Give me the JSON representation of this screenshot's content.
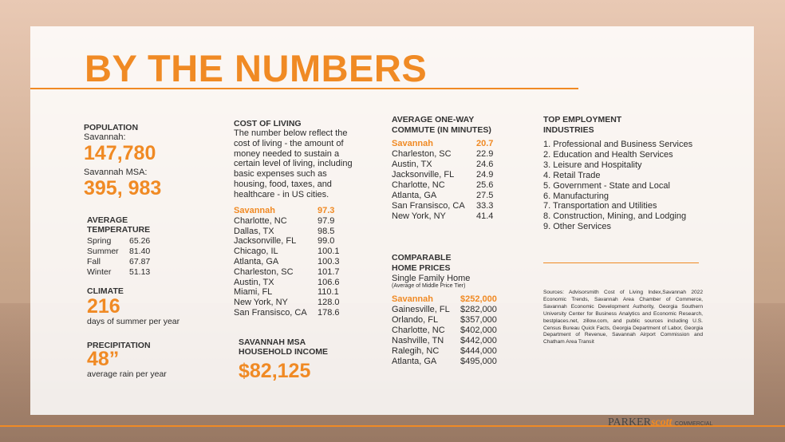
{
  "title": "BY THE NUMBERS",
  "population": {
    "heading": "POPULATION",
    "label1": "Savannah:",
    "value1": "147,780",
    "label2": "Savannah MSA:",
    "value2": "395, 983"
  },
  "temperature": {
    "heading": [
      "AVERAGE",
      "TEMPERATURE"
    ],
    "rows": [
      [
        "Spring",
        "65.26"
      ],
      [
        "Summer",
        "81.40"
      ],
      [
        "Fall",
        "67.87"
      ],
      [
        "Winter",
        "51.13"
      ]
    ]
  },
  "climate": {
    "heading": "CLIMATE",
    "value": "216",
    "caption": "days of summer per year"
  },
  "precipitation": {
    "heading": "PRECIPITATION",
    "value": "48”",
    "caption": "average rain per year"
  },
  "cost_of_living": {
    "heading": "COST OF LIVING",
    "description": "The number below reflect the cost of living - the amount of money needed to sustain a certain level of living, including basic expenses such as housing, food, taxes, and healthcare - in US cities.",
    "rows": [
      [
        "Savannah",
        "97.3"
      ],
      [
        "Charlotte, NC",
        "97.9"
      ],
      [
        "Dallas, TX",
        "98.5"
      ],
      [
        "Jacksonville, FL",
        "99.0"
      ],
      [
        "Chicago, IL",
        "100.1"
      ],
      [
        "Atlanta, GA",
        "100.3"
      ],
      [
        "Charleston, SC",
        "101.7"
      ],
      [
        "Austin, TX",
        "106.6"
      ],
      [
        "Miami, FL",
        "110.1"
      ],
      [
        "New York, NY",
        "128.0"
      ],
      [
        "San Fransisco, CA",
        "178.6"
      ]
    ]
  },
  "income": {
    "heading": [
      "SAVANNAH MSA",
      "HOUSEHOLD INCOME"
    ],
    "value": "$82,125"
  },
  "commute": {
    "heading": [
      "AVERAGE ONE-WAY",
      "COMMUTE (IN MINUTES)"
    ],
    "rows": [
      [
        "Savannah",
        "20.7"
      ],
      [
        "Charleston, SC",
        "22.9"
      ],
      [
        "Austin, TX",
        "24.6"
      ],
      [
        "Jacksonville, FL",
        "24.9"
      ],
      [
        "Charlotte, NC",
        "25.6"
      ],
      [
        "Atlanta, GA",
        "27.5"
      ],
      [
        "San Fransisco, CA",
        "33.3"
      ],
      [
        "New York, NY",
        "41.4"
      ]
    ]
  },
  "home_prices": {
    "heading": [
      "COMPARABLE",
      "HOME PRICES"
    ],
    "subheading": "Single Family Home",
    "note": "(Average of Middle Price Tier)",
    "rows": [
      [
        "Savannah",
        "$252,000"
      ],
      [
        "Gainesville, FL",
        "$282,000"
      ],
      [
        "Orlando, FL",
        "$357,000"
      ],
      [
        "Charlotte, NC",
        "$402,000"
      ],
      [
        "Nashville, TN",
        "$442,000"
      ],
      [
        "Ralegih, NC",
        "$444,000"
      ],
      [
        "Atlanta, GA",
        "$495,000"
      ]
    ]
  },
  "employment": {
    "heading": [
      "TOP EMPLOYMENT",
      "INDUSTRIES"
    ],
    "items": [
      "1. Professional  and Business Services",
      "2. Education and Health Services",
      "3. Leisure and Hospitality",
      "4. Retail Trade",
      "5. Government - State and Local",
      "6. Manufacturing",
      "7. Transportation and Utilities",
      "8. Construction, Mining, and Lodging",
      "9. Other Services"
    ]
  },
  "sources": "Sources: Advisorsmith Cost of Living Index,Savannah 2022 Economic Trends, Savannah Area Chamber of Commerce, Savannah Economic Development Authority, Georgia Southern University Center for Business Analytics and Economic Research, bestplaces.net, zillow.com, and public sources including U.S. Census Bureau Quick Facts, Georgia Department of Labor, Georgia Department of Revenue, Savannah Airport Commission and Chatham Area Transit",
  "logo": {
    "parker": "PARKER",
    "scott": "scott",
    "commercial": "COMMERCIAL"
  }
}
